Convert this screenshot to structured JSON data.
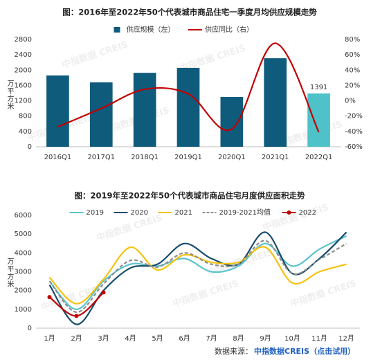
{
  "chart_data": [
    {
      "type": "bar",
      "title": "图：2016年至2022年50个代表城市商品住宅一季度月均供应规模走势",
      "y_label": "万平方米",
      "categories": [
        "2016Q1",
        "2017Q1",
        "2018Q1",
        "2019Q1",
        "2020Q1",
        "2021Q1",
        "2022Q1"
      ],
      "series": [
        {
          "name": "供应规模（左）",
          "type": "bar",
          "color": "#0f5b7c",
          "colors": [
            "#0f5b7c",
            "#0f5b7c",
            "#0f5b7c",
            "#0f5b7c",
            "#0f5b7c",
            "#0f5b7c",
            "#4fc1c8"
          ],
          "values": [
            1860,
            1680,
            1930,
            2060,
            1300,
            2310,
            1391
          ],
          "value_labels": [
            null,
            null,
            null,
            null,
            null,
            null,
            "1391"
          ]
        },
        {
          "name": "供应同比（右）",
          "type": "line",
          "axis": "y2",
          "color": "#c00000",
          "values": [
            -34,
            -10,
            15,
            9,
            -37,
            75,
            -41
          ]
        }
      ],
      "ylim": [
        0,
        2800
      ],
      "yticks": [
        0,
        400,
        800,
        1200,
        1600,
        2000,
        2400,
        2800
      ],
      "y2lim": [
        -60,
        80
      ],
      "y2ticks": [
        {
          "value": -60,
          "label": "-60%"
        },
        {
          "value": -40,
          "label": "-40%"
        },
        {
          "value": -20,
          "label": "-20%"
        },
        {
          "value": 0,
          "label": "0%"
        },
        {
          "value": 20,
          "label": "20%"
        },
        {
          "value": 40,
          "label": "40%"
        },
        {
          "value": 60,
          "label": "60%"
        },
        {
          "value": 80,
          "label": "80%"
        }
      ],
      "grid": false
    },
    {
      "type": "line",
      "title": "图：2019年至2022年50个代表城市商品住宅月度供应面积走势",
      "y_label": "万平方米",
      "categories": [
        "1月",
        "2月",
        "3月",
        "4月",
        "5月",
        "6月",
        "7月",
        "8月",
        "9月",
        "10月",
        "11月",
        "12月"
      ],
      "series": [
        {
          "name": "2019",
          "color": "#5cc3cb",
          "values": [
            2500,
            1000,
            2500,
            3400,
            3300,
            3700,
            3000,
            3300,
            4500,
            3300,
            4200,
            4900
          ]
        },
        {
          "name": "2020",
          "color": "#174d6c",
          "values": [
            2300,
            200,
            2000,
            3200,
            3400,
            4500,
            3700,
            3400,
            5100,
            2900,
            3700,
            5100
          ]
        },
        {
          "name": "2021",
          "color": "#f4c20d",
          "values": [
            2700,
            1300,
            2600,
            4300,
            3100,
            3900,
            3500,
            3500,
            4300,
            2400,
            3000,
            3400
          ]
        },
        {
          "name": "2019-2021均值",
          "color": "#8c8c8c",
          "dash": true,
          "values": [
            2500,
            850,
            2350,
            3600,
            3250,
            4000,
            3400,
            3400,
            4650,
            2900,
            3650,
            4500
          ]
        },
        {
          "name": "2022",
          "color": "#c00000",
          "marker": true,
          "values": [
            1650,
            650,
            1900,
            null,
            null,
            null,
            null,
            null,
            null,
            null,
            null,
            null
          ]
        }
      ],
      "ylim": [
        0,
        6000
      ],
      "yticks": [
        0,
        1000,
        2000,
        3000,
        4000,
        5000,
        6000
      ],
      "grid": false
    }
  ],
  "watermark": "中指数据 CREIS",
  "footer": {
    "label": "数据来源：",
    "link": "中指数据CREIS（点击试用）"
  }
}
